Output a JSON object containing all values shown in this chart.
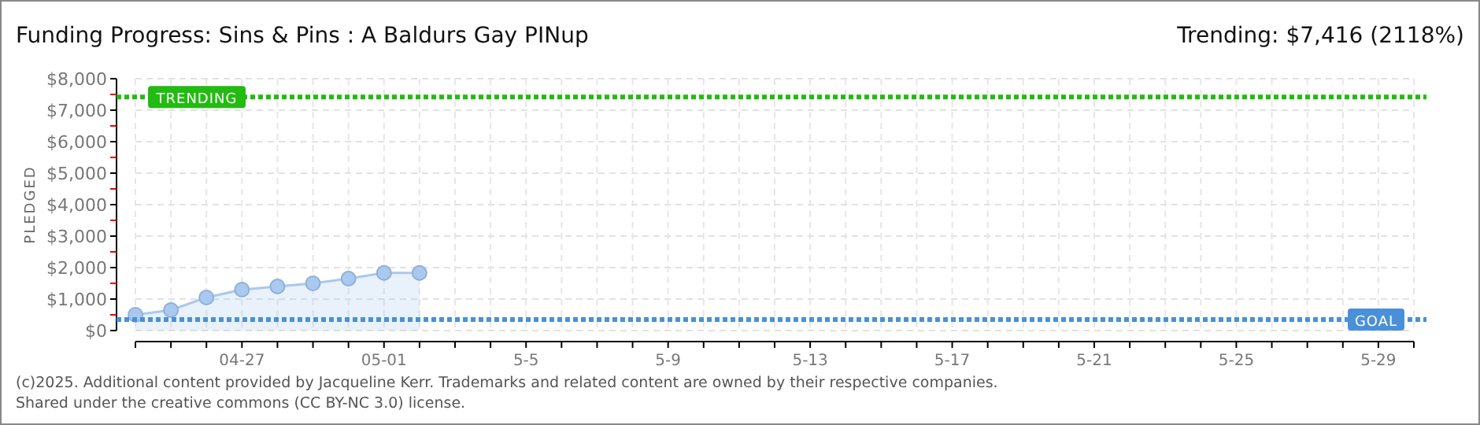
{
  "chart_data": {
    "type": "area",
    "title": "Funding Progress: Sins & Pins : A Baldurs Gay PINup",
    "subtitle": "Trending: $7,416 (2118%)",
    "ylabel": "PLEDGED",
    "x": [
      "2025-04-24",
      "2025-04-25",
      "2025-04-26",
      "2025-04-27",
      "2025-04-28",
      "2025-04-29",
      "2025-04-30",
      "2025-05-01",
      "2025-05-02"
    ],
    "series": [
      {
        "color": "#a9c9ee",
        "values": [
          500,
          650,
          1050,
          1300,
          1400,
          1500,
          1650,
          1830,
          1830
        ]
      }
    ],
    "xlim": [
      "2025-04-24",
      "2025-05-30"
    ],
    "xticks": [
      {
        "value": "2025-04-24",
        "label": null
      },
      {
        "value": "2025-04-25",
        "label": null
      },
      {
        "value": "2025-04-26",
        "label": null
      },
      {
        "value": "2025-04-27",
        "label": "04-27"
      },
      {
        "value": "2025-04-28",
        "label": null
      },
      {
        "value": "2025-04-29",
        "label": null
      },
      {
        "value": "2025-04-30",
        "label": null
      },
      {
        "value": "2025-05-01",
        "label": "05-01"
      },
      {
        "value": "2025-05-02",
        "label": null
      },
      {
        "value": "2025-05-03",
        "label": null
      },
      {
        "value": "2025-05-04",
        "label": null
      },
      {
        "value": "2025-05-05",
        "label": "5-5"
      },
      {
        "value": "2025-05-06",
        "label": null
      },
      {
        "value": "2025-05-07",
        "label": null
      },
      {
        "value": "2025-05-08",
        "label": null
      },
      {
        "value": "2025-05-09",
        "label": "5-9"
      },
      {
        "value": "2025-05-10",
        "label": null
      },
      {
        "value": "2025-05-11",
        "label": null
      },
      {
        "value": "2025-05-12",
        "label": null
      },
      {
        "value": "2025-05-13",
        "label": "5-13"
      },
      {
        "value": "2025-05-14",
        "label": null
      },
      {
        "value": "2025-05-15",
        "label": null
      },
      {
        "value": "2025-05-16",
        "label": null
      },
      {
        "value": "2025-05-17",
        "label": "5-17"
      },
      {
        "value": "2025-05-18",
        "label": null
      },
      {
        "value": "2025-05-19",
        "label": null
      },
      {
        "value": "2025-05-20",
        "label": null
      },
      {
        "value": "2025-05-21",
        "label": "5-21"
      },
      {
        "value": "2025-05-22",
        "label": null
      },
      {
        "value": "2025-05-23",
        "label": null
      },
      {
        "value": "2025-05-24",
        "label": null
      },
      {
        "value": "2025-05-25",
        "label": "5-25"
      },
      {
        "value": "2025-05-26",
        "label": null
      },
      {
        "value": "2025-05-27",
        "label": null
      },
      {
        "value": "2025-05-28",
        "label": null
      },
      {
        "value": "2025-05-29",
        "label": "5-29"
      },
      {
        "value": "2025-05-30",
        "label": null
      }
    ],
    "ylim": [
      0,
      8000
    ],
    "yticks": [
      {
        "value": 0,
        "label": "$0"
      },
      {
        "value": 500,
        "label": null
      },
      {
        "value": 1000,
        "label": "$1,000"
      },
      {
        "value": 1500,
        "label": null
      },
      {
        "value": 2000,
        "label": "$2,000"
      },
      {
        "value": 2500,
        "label": null
      },
      {
        "value": 3000,
        "label": "$3,000"
      },
      {
        "value": 3500,
        "label": null
      },
      {
        "value": 4000,
        "label": "$4,000"
      },
      {
        "value": 4500,
        "label": null
      },
      {
        "value": 5000,
        "label": "$5,000"
      },
      {
        "value": 5500,
        "label": null
      },
      {
        "value": 6000,
        "label": "$6,000"
      },
      {
        "value": 6500,
        "label": null
      },
      {
        "value": 7000,
        "label": "$7,000"
      },
      {
        "value": 7500,
        "label": null
      },
      {
        "value": 8000,
        "label": "$8,000"
      }
    ],
    "grid": true,
    "marker": "circle",
    "ref_lines": [
      {
        "axis": "y",
        "value": 7416,
        "label": "TRENDING",
        "color": "#22bb11",
        "line_style": "dotted"
      },
      {
        "axis": "y",
        "value": 350,
        "label": "GOAL",
        "color": "#4a90d9",
        "line_style": "dotted"
      }
    ],
    "annotations": [
      "(c)2025. Additional content provided by Jacqueline Kerr. Trademarks and related content are owned by their respective companies.",
      "Shared under the creative commons (CC BY-NC 3.0) license."
    ]
  }
}
